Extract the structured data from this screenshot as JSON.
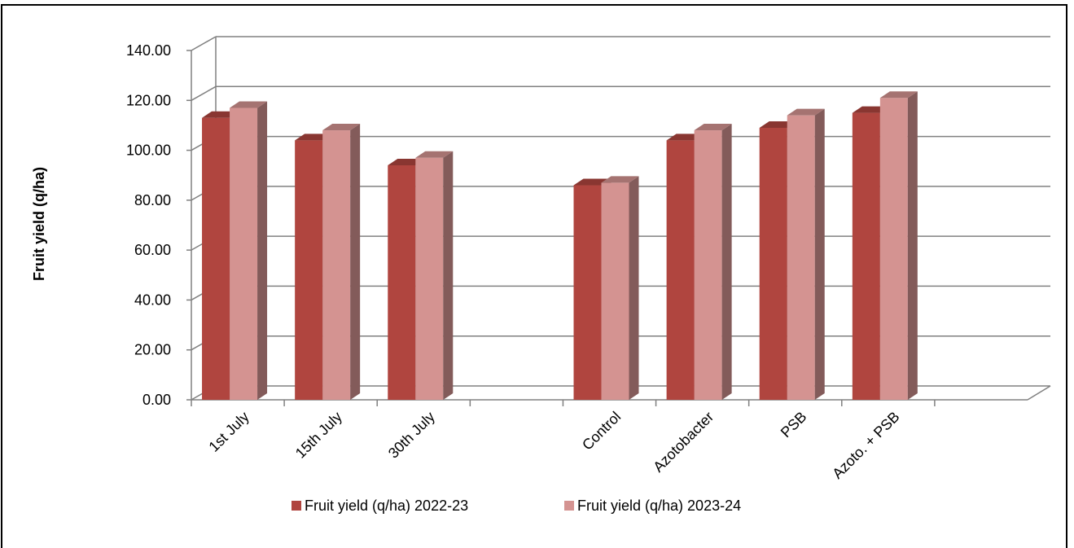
{
  "chart_data": {
    "type": "bar",
    "title": "",
    "xlabel": "",
    "ylabel": "Fruit yield (q/ha)",
    "categories": [
      "1st July",
      "15th July",
      "30th July",
      "",
      "Control",
      "Azotobacter",
      "PSB",
      "Azoto. + PSB",
      ""
    ],
    "series": [
      {
        "name": "Fruit yield (q/ha) 2022-23",
        "color": "#b0453f",
        "values": [
          113,
          104,
          94,
          null,
          86,
          104,
          109,
          115,
          null
        ]
      },
      {
        "name": "Fruit yield (q/ha) 2023-24",
        "color": "#d49391",
        "values": [
          117,
          108,
          97,
          null,
          87,
          108,
          114,
          121,
          null
        ]
      }
    ],
    "ylim": [
      0,
      140
    ],
    "yticks": [
      "0.00",
      "20.00",
      "40.00",
      "60.00",
      "80.00",
      "100.00",
      "120.00",
      "140.00"
    ],
    "grid": true,
    "style": "3d-column",
    "legend_position": "bottom"
  }
}
